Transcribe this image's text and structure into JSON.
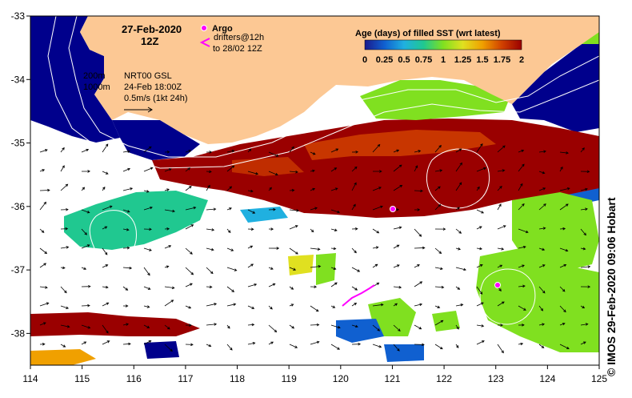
{
  "title": {
    "date": "27-Feb-2020",
    "time": "12Z"
  },
  "legend": {
    "argo_label": "Argo",
    "drifters_label": "drifters@12h",
    "drifters_label2": "to 28/02 12Z",
    "argo_color": "#ff00ff",
    "drifter_color": "#ff00ff"
  },
  "info": {
    "contour1": "200m",
    "contour2": "1000m",
    "product": "NRT00 GSL",
    "product_date": "24-Feb 18:00Z",
    "vector_scale": "0.5m/s (1kt 24h)"
  },
  "colorbar": {
    "title": "Age (days) of filled SST (wrt latest)",
    "ticks": [
      "0",
      "0.25",
      "0.5",
      "0.75",
      "1",
      "1.25",
      "1.5",
      "1.75",
      "2"
    ],
    "colors": [
      "#1a1a8c",
      "#1060d0",
      "#20b0e0",
      "#20c890",
      "#80e020",
      "#e0e020",
      "#f0a000",
      "#d04000",
      "#9a0000"
    ]
  },
  "axes": {
    "x_ticks": [
      "114",
      "115",
      "116",
      "117",
      "118",
      "119",
      "120",
      "121",
      "122",
      "123",
      "124",
      "125"
    ],
    "y_ticks": [
      "-33",
      "-34",
      "-35",
      "-36",
      "-37",
      "-38"
    ],
    "lon_range": [
      114,
      125
    ],
    "lat_range": [
      -38.5,
      -33
    ]
  },
  "credit": "© IMOS 29-Feb-2020 09:06 Hobart",
  "colors": {
    "land": "#fcc894",
    "nodata": "#ffffff",
    "fresh": "#00008c"
  }
}
